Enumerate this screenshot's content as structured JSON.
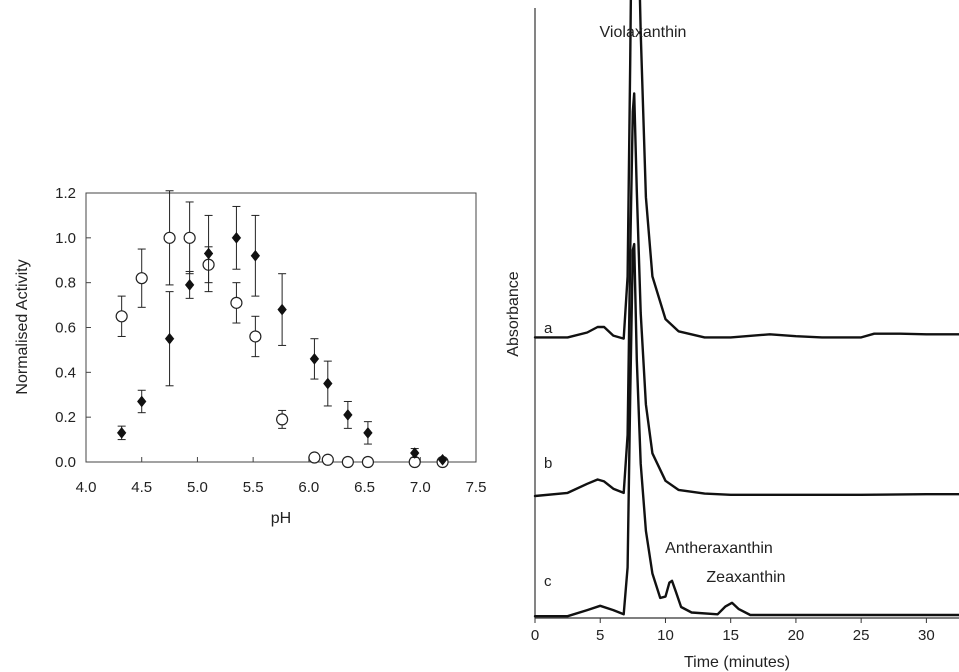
{
  "chart_data": [
    {
      "type": "scatter",
      "xlabel": "pH",
      "ylabel": "Normalised Activity",
      "xlim": [
        4.0,
        7.5
      ],
      "ylim": [
        0.0,
        1.2
      ],
      "xticks": [
        "4.0",
        "4.5",
        "5.0",
        "5.5",
        "6.0",
        "6.5",
        "7.0",
        "7.5"
      ],
      "yticks": [
        "0.0",
        "0.2",
        "0.4",
        "0.6",
        "0.8",
        "1.0",
        "1.2"
      ],
      "grid": false,
      "series": [
        {
          "marker": "filled-diamond",
          "color": "#111111",
          "points": [
            {
              "x": 4.32,
              "y": 0.13,
              "err": 0.03
            },
            {
              "x": 4.5,
              "y": 0.27,
              "err": 0.05
            },
            {
              "x": 4.75,
              "y": 0.55,
              "err": 0.21
            },
            {
              "x": 4.93,
              "y": 0.79,
              "err": 0.06
            },
            {
              "x": 5.1,
              "y": 0.93,
              "err": 0.17
            },
            {
              "x": 5.35,
              "y": 1.0,
              "err": 0.14
            },
            {
              "x": 5.52,
              "y": 0.92,
              "err": 0.18
            },
            {
              "x": 5.76,
              "y": 0.68,
              "err": 0.16
            },
            {
              "x": 6.05,
              "y": 0.46,
              "err": 0.09
            },
            {
              "x": 6.17,
              "y": 0.35,
              "err": 0.1
            },
            {
              "x": 6.35,
              "y": 0.21,
              "err": 0.06
            },
            {
              "x": 6.53,
              "y": 0.13,
              "err": 0.05
            },
            {
              "x": 6.95,
              "y": 0.04,
              "err": 0.02
            },
            {
              "x": 7.2,
              "y": 0.01,
              "err": 0.0
            }
          ]
        },
        {
          "marker": "open-circle",
          "color": "#111111",
          "points": [
            {
              "x": 4.32,
              "y": 0.65,
              "err": 0.09
            },
            {
              "x": 4.5,
              "y": 0.82,
              "err": 0.13
            },
            {
              "x": 4.75,
              "y": 1.0,
              "err": 0.21
            },
            {
              "x": 4.93,
              "y": 1.0,
              "err": 0.16
            },
            {
              "x": 5.1,
              "y": 0.88,
              "err": 0.08
            },
            {
              "x": 5.35,
              "y": 0.71,
              "err": 0.09
            },
            {
              "x": 5.52,
              "y": 0.56,
              "err": 0.09
            },
            {
              "x": 5.76,
              "y": 0.19,
              "err": 0.04
            },
            {
              "x": 6.05,
              "y": 0.02,
              "err": 0.0
            },
            {
              "x": 6.17,
              "y": 0.01,
              "err": 0.0
            },
            {
              "x": 6.35,
              "y": 0.0,
              "err": 0.0
            },
            {
              "x": 6.53,
              "y": 0.0,
              "err": 0.0
            },
            {
              "x": 6.95,
              "y": 0.0,
              "err": 0.0
            },
            {
              "x": 7.2,
              "y": 0.0,
              "err": 0.0
            }
          ]
        }
      ]
    },
    {
      "type": "line",
      "xlabel": "Time (minutes)",
      "ylabel": "Absorbance",
      "xlim": [
        0,
        32.5
      ],
      "xticks": [
        "0",
        "5",
        "10",
        "15",
        "20",
        "25",
        "30"
      ],
      "ylim": [
        0,
        1
      ],
      "grid": false,
      "annotations": [
        "Violaxanthin",
        "Antheraxanthin",
        "Zeaxanthin"
      ],
      "series": [
        {
          "name": "a",
          "baseline": 0.46,
          "x": [
            0,
            2.5,
            4.0,
            4.8,
            5.3,
            6.0,
            6.8,
            7.1,
            7.3,
            7.5,
            7.6,
            7.8,
            8.1,
            8.5,
            9.0,
            10.0,
            11.0,
            13.0,
            15.0,
            18.0,
            20.0,
            22.0,
            25.0,
            26.0,
            28.0,
            30.0,
            32.5
          ],
          "y": [
            0.0,
            0.0,
            0.008,
            0.017,
            0.017,
            0.003,
            -0.002,
            0.1,
            0.45,
            0.87,
            0.91,
            0.78,
            0.5,
            0.23,
            0.1,
            0.03,
            0.01,
            0.0,
            0.0,
            0.005,
            0.002,
            0.0,
            0.0,
            0.006,
            0.006,
            0.005,
            0.005
          ]
        },
        {
          "name": "b",
          "baseline": 0.2,
          "x": [
            0,
            2.5,
            4.0,
            4.8,
            5.3,
            6.0,
            6.8,
            7.1,
            7.3,
            7.5,
            7.6,
            7.8,
            8.1,
            8.5,
            9.0,
            10.0,
            11.0,
            13.0,
            15.0,
            18.0,
            20.0,
            25.0,
            30.0,
            32.5
          ],
          "y": [
            0.0,
            0.005,
            0.02,
            0.027,
            0.024,
            0.012,
            0.005,
            0.1,
            0.4,
            0.63,
            0.66,
            0.5,
            0.3,
            0.15,
            0.07,
            0.025,
            0.01,
            0.004,
            0.002,
            0.002,
            0.002,
            0.002,
            0.003,
            0.003
          ]
        },
        {
          "name": "c",
          "baseline": 0.003,
          "x": [
            0,
            2.5,
            4.0,
            5.0,
            6.0,
            6.8,
            7.1,
            7.3,
            7.5,
            7.6,
            7.8,
            8.1,
            8.5,
            9.0,
            9.6,
            10.0,
            10.3,
            10.5,
            10.8,
            11.2,
            12.0,
            14.0,
            14.6,
            15.1,
            15.6,
            16.5,
            20.0,
            25.0,
            30.0,
            32.5
          ],
          "y": [
            0.0,
            0.0,
            0.01,
            0.017,
            0.01,
            0.003,
            0.08,
            0.36,
            0.6,
            0.61,
            0.42,
            0.25,
            0.14,
            0.07,
            0.03,
            0.032,
            0.055,
            0.058,
            0.04,
            0.015,
            0.006,
            0.003,
            0.016,
            0.022,
            0.012,
            0.002,
            0.002,
            0.002,
            0.002,
            0.002
          ]
        }
      ]
    }
  ]
}
